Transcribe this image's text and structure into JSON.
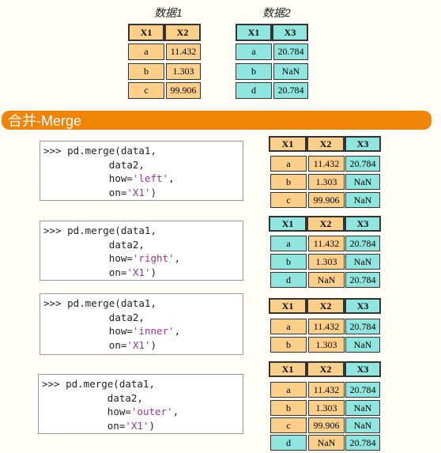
{
  "title1": "数据1",
  "title2": "数据2",
  "banner": "合并-Merge",
  "data1": {
    "headers": [
      "X1",
      "X2"
    ],
    "rows": [
      [
        "a",
        "11.432"
      ],
      [
        "b",
        "1.303"
      ],
      [
        "c",
        "99.906"
      ]
    ]
  },
  "data2": {
    "headers": [
      "X1",
      "X3"
    ],
    "rows": [
      [
        "a",
        "20.784"
      ],
      [
        "b",
        "NaN"
      ],
      [
        "d",
        "20.784"
      ]
    ]
  },
  "examples": [
    {
      "l1": ">>> pd.merge(data1,",
      "l2": "data2,",
      "l3a": "how=",
      "l3b": "'left'",
      "l3c": ",",
      "l4a": "on=",
      "l4b": "'X1'",
      "l4c": ")",
      "headers": [
        "X1",
        "X2",
        "X3"
      ],
      "rows": [
        [
          "a",
          "11.432",
          "20.784"
        ],
        [
          "b",
          "1.303",
          "NaN"
        ],
        [
          "c",
          "99.906",
          "NaN"
        ]
      ]
    },
    {
      "l1": ">>> pd.merge(data1,",
      "l2": "data2,",
      "l3a": "how=",
      "l3b": "'right'",
      "l3c": ",",
      "l4a": "on=",
      "l4b": "'X1'",
      "l4c": ")",
      "headers": [
        "X1",
        "X2",
        "X3"
      ],
      "rows": [
        [
          "a",
          "11.432",
          "20.784"
        ],
        [
          "b",
          "1.303",
          "NaN"
        ],
        [
          "d",
          "NaN",
          "20.784"
        ]
      ]
    },
    {
      "l1": ">>> pd.merge(data1,",
      "l2": "data2,",
      "l3a": "how=",
      "l3b": "'inner'",
      "l3c": ",",
      "l4a": "on=",
      "l4b": "'X1'",
      "l4c": ")",
      "headers": [
        "X1",
        "X2",
        "X3"
      ],
      "rows": [
        [
          "a",
          "11.432",
          "20.784"
        ],
        [
          "b",
          "1.303",
          "NaN"
        ]
      ]
    },
    {
      "l1": ">>> pd.merge(data1,",
      "l2": "data2,",
      "l3a": "how=",
      "l3b": "'outer'",
      "l3c": ",",
      "l4a": "on=",
      "l4b": "'X1'",
      "l4c": ")",
      "headers": [
        "X1",
        "X2",
        "X3"
      ],
      "rows": [
        [
          "a",
          "11.432",
          "20.784"
        ],
        [
          "b",
          "1.303",
          "NaN"
        ],
        [
          "c",
          "99.906",
          "NaN"
        ],
        [
          "d",
          "NaN",
          "20.784"
        ]
      ]
    }
  ]
}
